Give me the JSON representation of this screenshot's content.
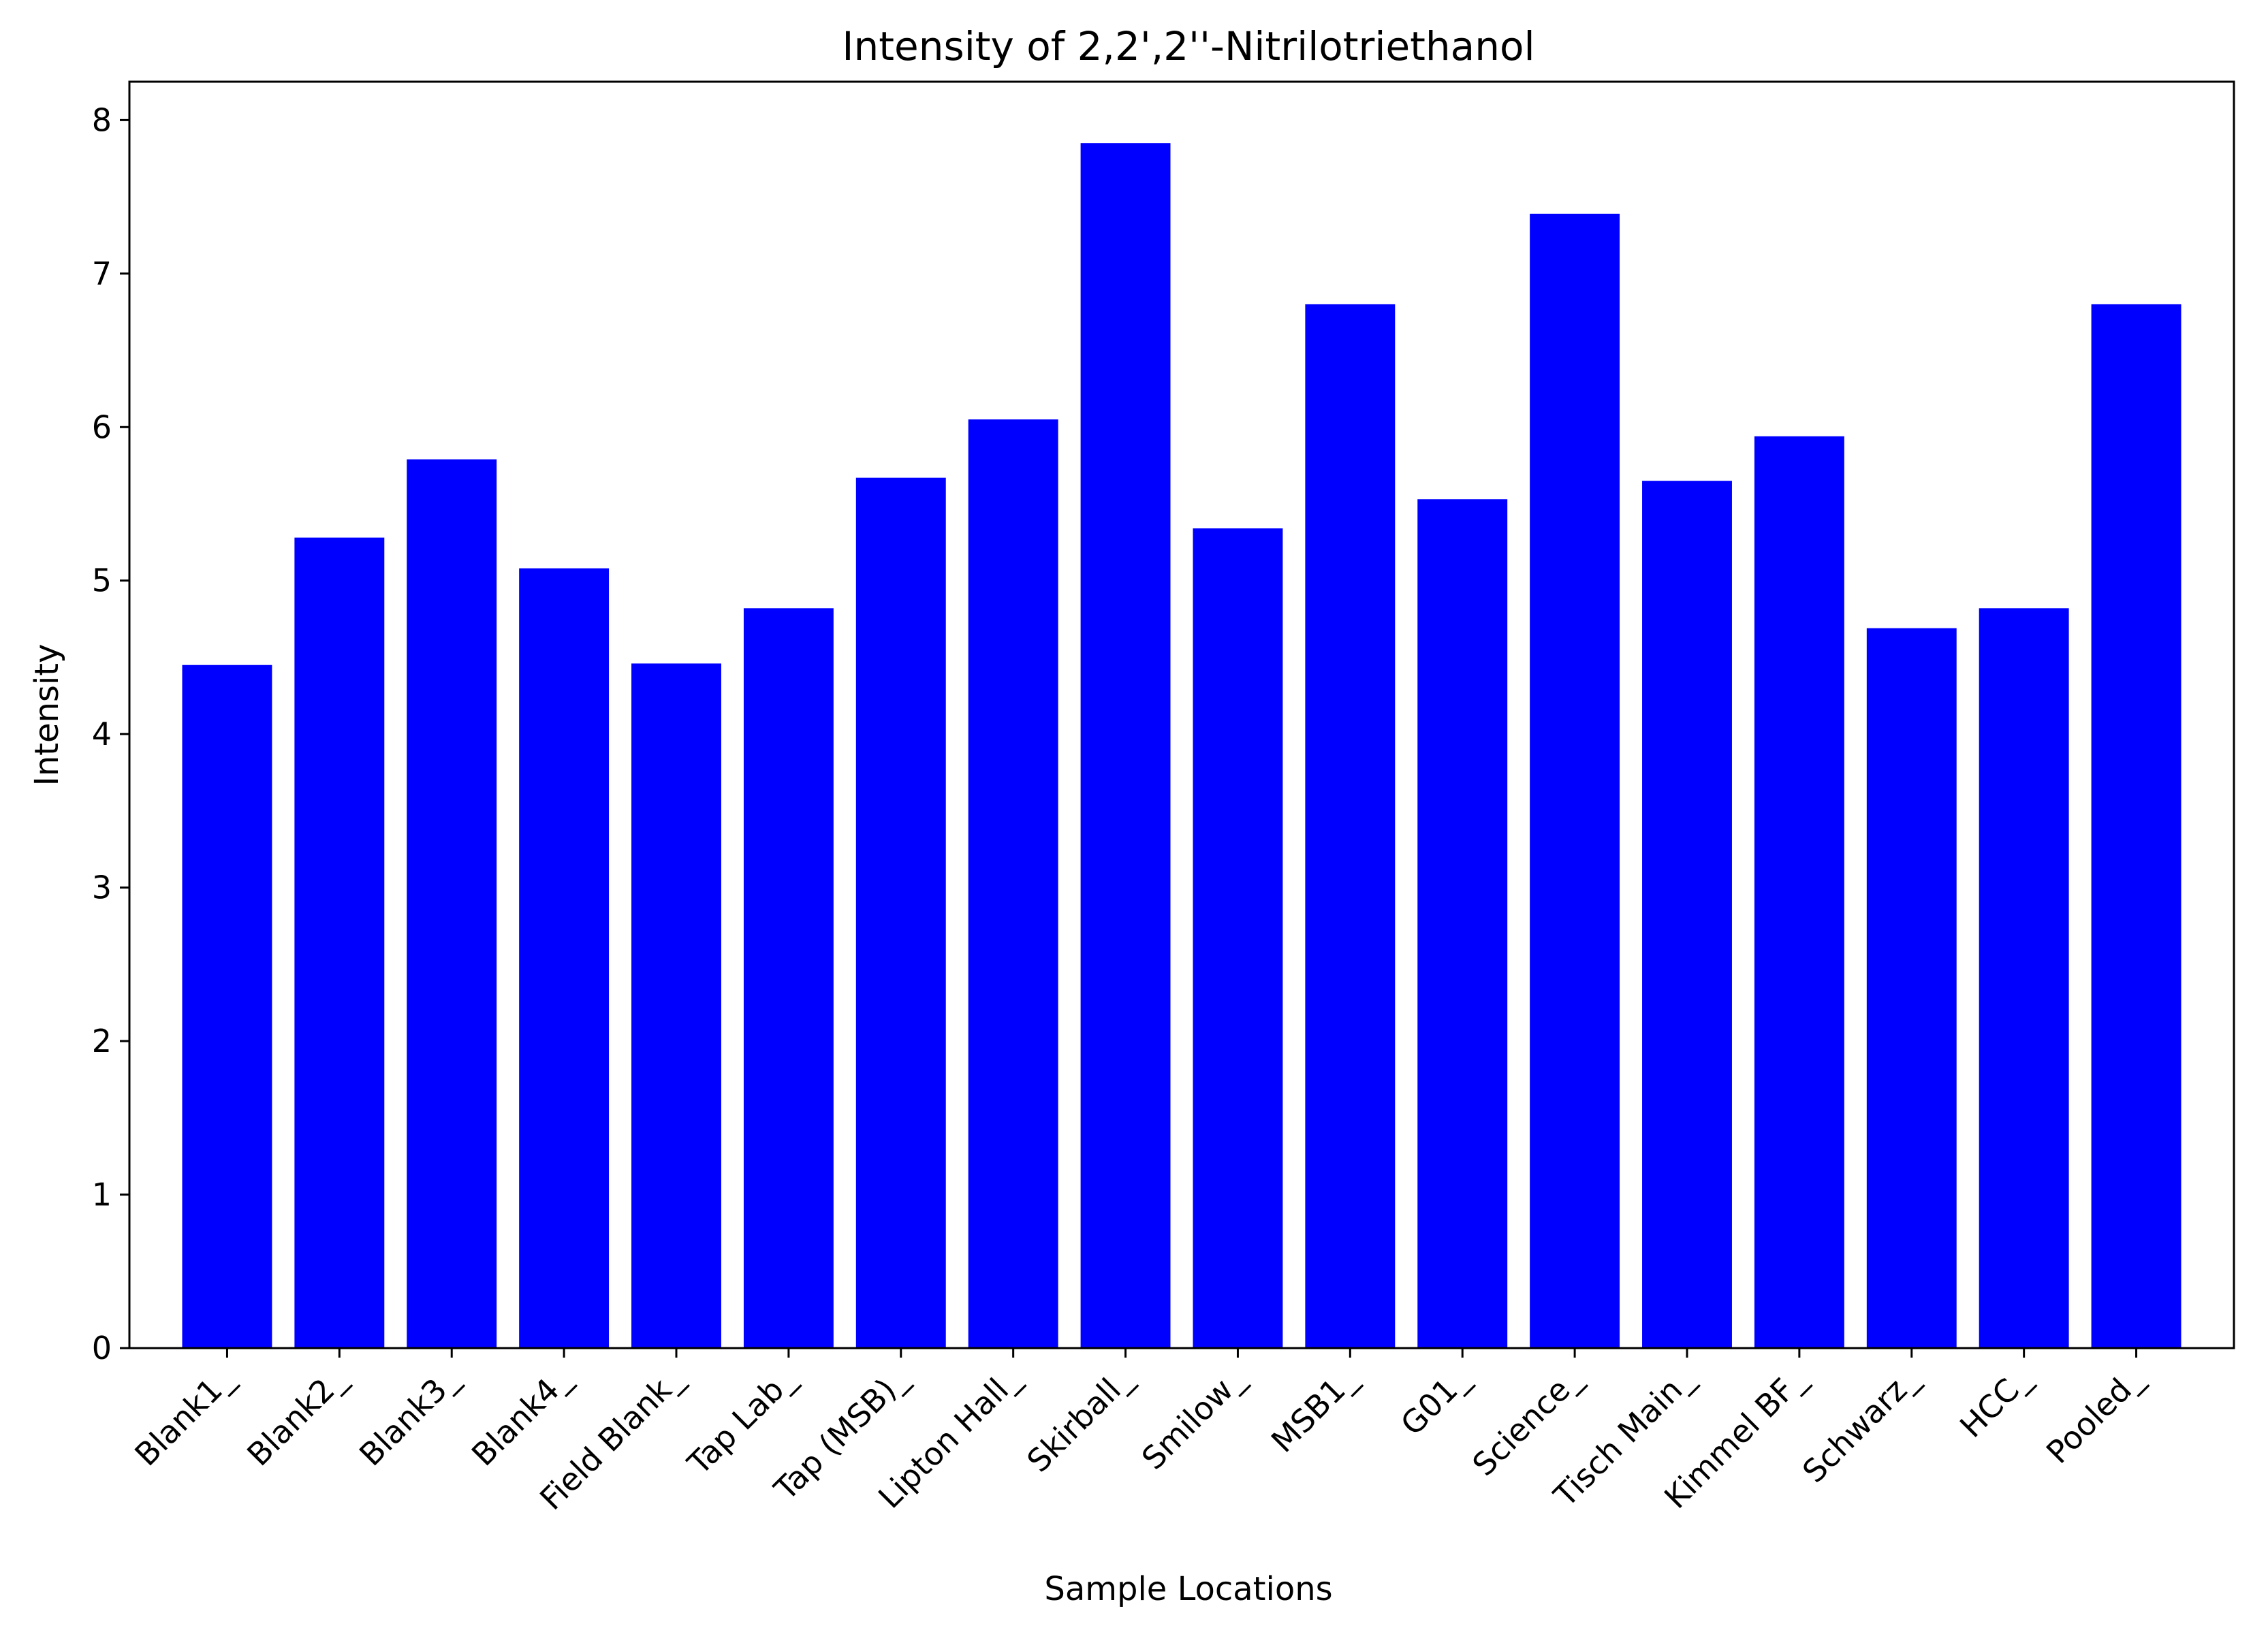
{
  "chart_data": {
    "type": "bar",
    "title": "Intensity of 2,2',2''-Nitrilotriethanol",
    "xlabel": "Sample Locations",
    "ylabel": "Intensity",
    "ylim": [
      0,
      8.25
    ],
    "yticks": [
      0,
      1,
      2,
      3,
      4,
      5,
      6,
      7,
      8
    ],
    "grid": false,
    "legend": "none",
    "bar_color": "#0000ff",
    "categories": [
      "Blank1_",
      "Blank2_",
      "Blank3_",
      "Blank4_",
      "Field Blank_",
      "Tap Lab_",
      "Tap (MSB)_",
      "Lipton Hall_",
      "Skirball_",
      "Smilow_",
      "MSB1_",
      "G01_",
      "Science_",
      "Tisch Main_",
      "Kimmel BF_",
      "Schwarz_",
      "HCC_",
      "Pooled_"
    ],
    "values": [
      4.45,
      5.28,
      5.79,
      5.08,
      4.46,
      4.82,
      5.67,
      6.05,
      7.85,
      5.34,
      6.8,
      5.53,
      7.39,
      5.65,
      5.94,
      4.69,
      4.82,
      6.8
    ]
  }
}
